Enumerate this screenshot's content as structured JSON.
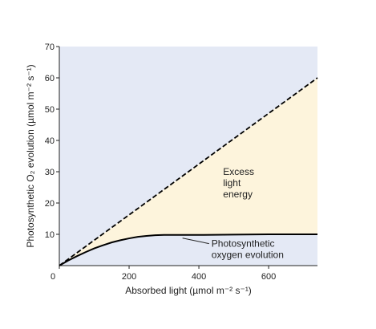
{
  "chart_data": {
    "type": "line",
    "xlabel": "Absorbed light (µmol m⁻² s⁻¹)",
    "ylabel": "Photosynthetic O₂ evolution (µmol m⁻² s⁻¹)",
    "xlim": [
      0,
      740
    ],
    "ylim": [
      0,
      70
    ],
    "x_ticks": [
      0,
      200,
      400,
      600
    ],
    "y_ticks": [
      10,
      20,
      30,
      40,
      50,
      60,
      70
    ],
    "grid": false,
    "colors": {
      "plot_background": "#e4e9f5",
      "excess_fill": "#fdf4dc",
      "line": "#000000"
    },
    "series": [
      {
        "style": "dashed",
        "x": [
          0,
          740
        ],
        "y": [
          0,
          60
        ]
      },
      {
        "style": "solid",
        "x": [
          0,
          25,
          50,
          75,
          100,
          125,
          150,
          175,
          200,
          225,
          250,
          275,
          300,
          350,
          400,
          500,
          600,
          740
        ],
        "y": [
          0,
          1.6,
          3.0,
          4.3,
          5.5,
          6.5,
          7.4,
          8.1,
          8.7,
          9.2,
          9.5,
          9.7,
          9.8,
          9.8,
          9.8,
          9.9,
          10.0,
          10.0
        ]
      }
    ],
    "annotations": [
      {
        "lines": [
          "Excess",
          "light",
          "energy"
        ],
        "x": 520,
        "y": 29
      },
      {
        "lines": [
          "Photosynthetic",
          "oxygen evolution"
        ],
        "x": 450,
        "y": 6,
        "pointer_x": 360,
        "pointer_y": 9.8
      }
    ]
  }
}
